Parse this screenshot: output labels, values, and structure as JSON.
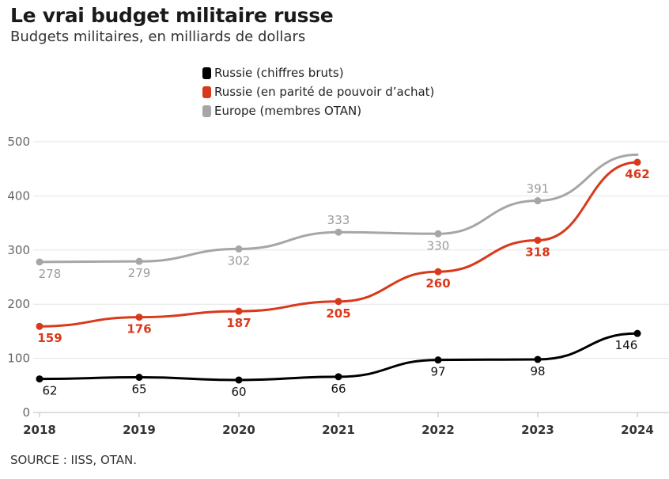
{
  "chart_data": {
    "type": "line",
    "title": "Le vrai budget militaire russe",
    "subtitle": "Budgets militaires, en milliards de dollars",
    "xlabel": "",
    "ylabel": "",
    "x": [
      "2018",
      "2019",
      "2020",
      "2021",
      "2022",
      "2023",
      "2024"
    ],
    "ylim": [
      0,
      500
    ],
    "yticks": [
      0,
      100,
      200,
      300,
      400,
      500
    ],
    "ytick_labels": [
      "0",
      "100",
      "200",
      "300",
      "400",
      "500"
    ],
    "grid": true,
    "legend_position": "top-center",
    "series": [
      {
        "name": "Russie (chiffres bruts)",
        "color": "#000000",
        "label_color": "#111111",
        "values": [
          62,
          65,
          60,
          66,
          97,
          98,
          146
        ]
      },
      {
        "name": "Russie (en parité de pouvoir d’achat)",
        "color": "#d9391b",
        "label_color": "#d9391b",
        "values": [
          159,
          176,
          187,
          205,
          260,
          318,
          462
        ]
      },
      {
        "name": "Europe (membres OTAN)",
        "color": "#a6a6a6",
        "label_color": "#9a9a9a",
        "values": [
          278,
          279,
          302,
          333,
          330,
          391,
          476
        ]
      }
    ],
    "source": "SOURCE : IISS, OTAN."
  }
}
